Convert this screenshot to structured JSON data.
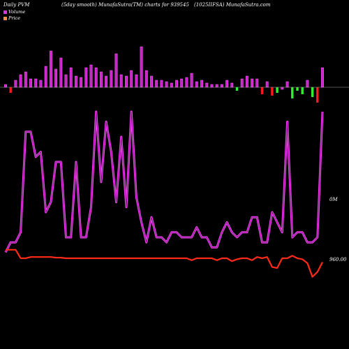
{
  "header": {
    "left": "Daily PVM",
    "center": "(5day smooth) MunafaSutra(TM) charts for 939545",
    "right": "(1025IIFSA) MunafaSutra.com"
  },
  "legend": {
    "volume_label": "Volume",
    "price_label": "Price",
    "volume_color": "#dd33dd",
    "price_color": "#ff8c42"
  },
  "labels": {
    "volume_axis": "0M",
    "price_axis": "960.00"
  },
  "colors": {
    "up_bar": "#cc22cc",
    "down_bar": "#ff1a1a",
    "green_bar": "#33ee33",
    "volume_line_outer": "#ff44ff",
    "volume_line_inner": "#7a1a7a",
    "price_line": "#ff2a1a",
    "baseline": "#aaaaaa"
  },
  "chart_data": [
    {
      "type": "bar",
      "title": "Volume bars",
      "values": [
        4,
        -8,
        10,
        18,
        22,
        12,
        12,
        10,
        30,
        52,
        26,
        42,
        18,
        28,
        16,
        14,
        28,
        32,
        28,
        22,
        16,
        24,
        48,
        18,
        16,
        24,
        18,
        58,
        24,
        16,
        10,
        10,
        8,
        6,
        10,
        12,
        14,
        20,
        8,
        10,
        6,
        4,
        4,
        4,
        10,
        6,
        -5,
        12,
        16,
        12,
        12,
        -10,
        8,
        -12,
        -8,
        -3,
        8,
        -16,
        -5,
        -10,
        10,
        -14,
        -22,
        28
      ],
      "colors": [
        "p",
        "r",
        "p",
        "p",
        "p",
        "p",
        "p",
        "p",
        "p",
        "p",
        "p",
        "p",
        "p",
        "p",
        "p",
        "p",
        "p",
        "p",
        "p",
        "p",
        "p",
        "p",
        "p",
        "p",
        "p",
        "p",
        "p",
        "p",
        "p",
        "p",
        "p",
        "p",
        "p",
        "p",
        "p",
        "p",
        "p",
        "p",
        "p",
        "p",
        "p",
        "p",
        "p",
        "p",
        "p",
        "p",
        "g",
        "p",
        "p",
        "p",
        "p",
        "r",
        "p",
        "r",
        "g",
        "p",
        "p",
        "g",
        "g",
        "g",
        "p",
        "g",
        "r",
        "p"
      ]
    },
    {
      "type": "line",
      "title": "Volume",
      "values": [
        2,
        4,
        4,
        6,
        26,
        26,
        21,
        22,
        10,
        12,
        20,
        20,
        5,
        5,
        20,
        5,
        5,
        11,
        30,
        16,
        28,
        22,
        12,
        25,
        11,
        30,
        13,
        8,
        4,
        9,
        5,
        5,
        4,
        6,
        6,
        5,
        5,
        5,
        7,
        5,
        5,
        3,
        3,
        6,
        8,
        6,
        5,
        6,
        6,
        9,
        9,
        4,
        4,
        10,
        8,
        6,
        28,
        5,
        6,
        6,
        4,
        4,
        5,
        30
      ]
    },
    {
      "type": "line",
      "title": "Price",
      "values": [
        966,
        966,
        966,
        960,
        960,
        960,
        960,
        960,
        960,
        960,
        960,
        960,
        960,
        960,
        960,
        960,
        960,
        960,
        960,
        960,
        960,
        960,
        960,
        960,
        960,
        960,
        960,
        960,
        960,
        960,
        960,
        960,
        960,
        960,
        960,
        960,
        960,
        960,
        960,
        960,
        960,
        960,
        960,
        960,
        960,
        960,
        960,
        960,
        960,
        960,
        960,
        960,
        960,
        960,
        960,
        960,
        960,
        960,
        960,
        960,
        960,
        960,
        960,
        960
      ]
    }
  ]
}
